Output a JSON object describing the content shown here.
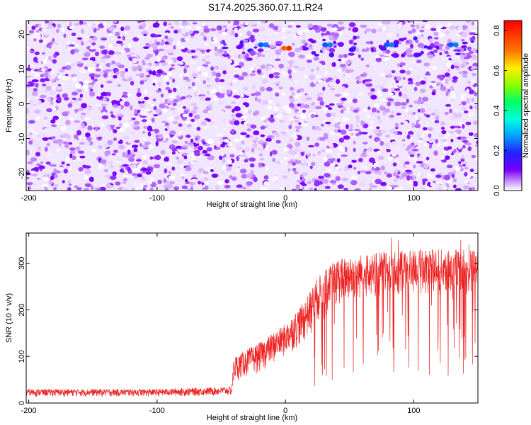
{
  "title": "S174.2025.360.07.11.R24",
  "colors": {
    "trace": "#ee2222",
    "frame": "#000000",
    "background": "#ffffff"
  },
  "chart_data": [
    {
      "type": "heatmap",
      "xlabel": "Height of straight line (km)",
      "ylabel": "Frequency (Hz)",
      "xlim": [
        -202,
        150
      ],
      "ylim": [
        -25,
        24
      ],
      "x_ticks": [
        "-200",
        "-100",
        "0",
        "100"
      ],
      "y_ticks": [
        "-20",
        "-10",
        "0",
        "10",
        "20"
      ],
      "colorbar": {
        "label": "Normalized spectral amplitude",
        "range": [
          0,
          0.85
        ],
        "ticks": [
          "0.0",
          "0.2",
          "0.4",
          "0.6",
          "0.8"
        ],
        "colormap": "rainbow (violet → blue → cyan → green → yellow → red)"
      },
      "features": [
        {
          "desc": "horizontal band of higher amplitude",
          "freq_range_hz": [
            14,
            19
          ],
          "x_range_km": [
            -50,
            150
          ]
        },
        {
          "desc": "peak amplitude",
          "x_km": 0,
          "freq_hz": 16,
          "amplitude": 0.8
        },
        {
          "desc": "secondary peaks (cyan)",
          "x_km": [
            -18,
            32,
            80,
            130
          ],
          "freq_hz": 17,
          "amplitude": 0.25
        },
        {
          "desc": "low-amplitude vertical stripe",
          "x_km": 0,
          "freq_range_hz": [
            -25,
            24
          ]
        }
      ]
    },
    {
      "type": "line",
      "xlabel": "Height of straight line (km)",
      "ylabel": "SNR (10 * v/v)",
      "xlim": [
        -202,
        150
      ],
      "ylim": [
        0,
        365
      ],
      "x_ticks": [
        "-200",
        "-100",
        "0",
        "100"
      ],
      "y_ticks": [
        "0",
        "100",
        "200",
        "300"
      ],
      "series": [
        {
          "envelope": [
            {
              "x": -202,
              "low": 5,
              "high": 30
            },
            {
              "x": -100,
              "low": 5,
              "high": 30
            },
            {
              "x": -42,
              "low": 5,
              "high": 35
            },
            {
              "x": -40,
              "low": 15,
              "high": 100
            },
            {
              "x": -20,
              "low": 30,
              "high": 130
            },
            {
              "x": 0,
              "low": 60,
              "high": 170
            },
            {
              "x": 15,
              "low": 80,
              "high": 220
            },
            {
              "x": 25,
              "low": 120,
              "high": 270
            },
            {
              "x": 40,
              "low": 150,
              "high": 310
            },
            {
              "x": 60,
              "low": 170,
              "high": 320
            },
            {
              "x": 100,
              "low": 180,
              "high": 330
            },
            {
              "x": 150,
              "low": 180,
              "high": 330
            }
          ]
        }
      ]
    }
  ]
}
